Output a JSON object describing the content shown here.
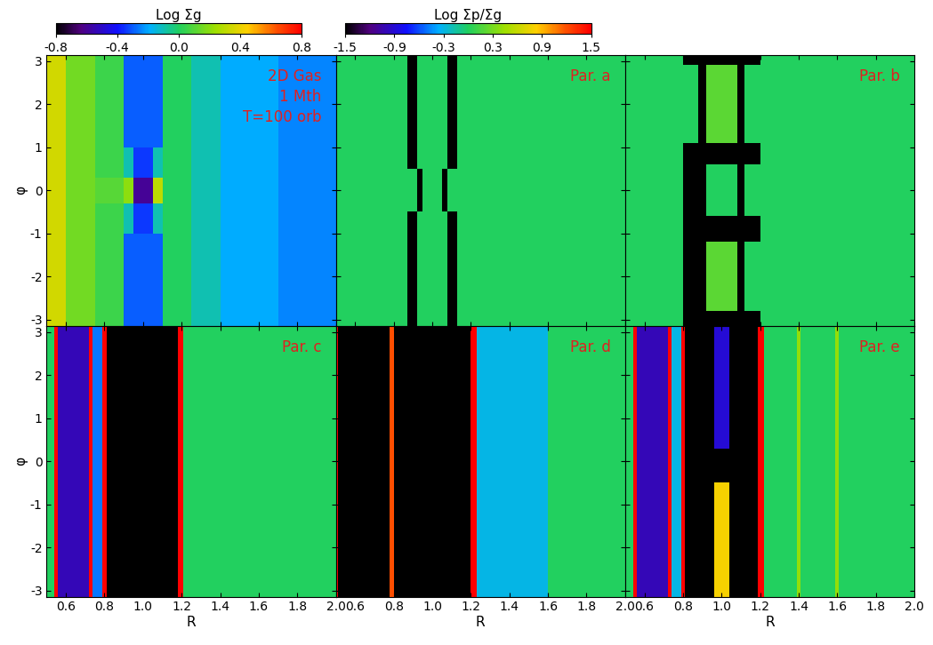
{
  "chart_data": [
    {
      "type": "heatmap",
      "annotations": [
        "2D Gas",
        "1 Mth",
        "T=100 orb"
      ],
      "ylabel": "φ",
      "tick_labels": "y",
      "xlim": [
        0.5,
        2.0
      ],
      "ylim": [
        -3.14159,
        3.14159
      ],
      "xticks": [
        0.6,
        0.8,
        {
          "value": 1.0,
          "label": "1.0"
        },
        1.2,
        1.4,
        1.6,
        1.8,
        {
          "value": 2.0,
          "label": "2.0"
        }
      ],
      "yticks": [
        -3,
        -2,
        -1,
        0,
        1,
        2,
        3
      ],
      "r_edges": [
        0.5,
        0.6,
        0.75,
        0.9,
        0.95,
        1.05,
        1.1,
        1.25,
        1.4,
        1.7,
        2.0
      ],
      "phi_edges": [
        -3.14159,
        -1.0,
        -0.3,
        0.3,
        1.0,
        3.14159
      ],
      "cells": [
        [
          0.35,
          0.15,
          0.05,
          -0.3,
          -0.3,
          -0.3,
          0.0,
          -0.1,
          -0.2,
          -0.25
        ],
        [
          0.35,
          0.15,
          0.05,
          -0.1,
          -0.35,
          -0.1,
          0.0,
          -0.1,
          -0.2,
          -0.25
        ],
        [
          0.35,
          0.15,
          0.1,
          0.2,
          -0.6,
          0.3,
          0.0,
          -0.1,
          -0.2,
          -0.25
        ],
        [
          0.35,
          0.15,
          0.05,
          -0.1,
          -0.35,
          -0.1,
          0.0,
          -0.1,
          -0.2,
          -0.25
        ],
        [
          0.35,
          0.15,
          0.05,
          -0.3,
          -0.3,
          -0.3,
          0.0,
          -0.1,
          -0.2,
          -0.25
        ]
      ],
      "color_range": [
        -0.8,
        0.8
      ],
      "colorbar": {
        "label": "Log Σg",
        "range": [
          -0.8,
          0.8
        ],
        "ticks": [
          -0.8,
          -0.4,
          {
            "value": 0,
            "label": "0.0"
          },
          0.4,
          0.8
        ]
      }
    },
    {
      "type": "heatmap",
      "annotations": [
        "Par. a"
      ],
      "tick_labels": false,
      "xlim": [
        0.5,
        2.0
      ],
      "ylim": [
        -3.14159,
        3.14159
      ],
      "xticks": [
        0.6,
        0.8,
        {
          "value": 1.0,
          "label": "1.0"
        },
        1.2,
        1.4,
        1.6,
        1.8,
        {
          "value": 2.0,
          "label": "2.0"
        }
      ],
      "yticks": [
        -3,
        -2,
        -1,
        0,
        1,
        2,
        3
      ],
      "r_edges": [
        0.5,
        0.87,
        0.92,
        0.95,
        1.05,
        1.08,
        1.13,
        2.0
      ],
      "phi_edges": [
        -3.14159,
        -0.5,
        0.5,
        3.14159
      ],
      "cells": [
        [
          0,
          -1.5,
          0,
          0,
          0,
          -1.5,
          0
        ],
        [
          0,
          0,
          -1.5,
          0,
          -1.5,
          0,
          0
        ],
        [
          0,
          -1.5,
          0,
          0,
          0,
          -1.5,
          0
        ]
      ],
      "color_range": [
        -1.5,
        1.5
      ],
      "colorbar": {
        "label": "Log Σp/Σg",
        "range": [
          -1.5,
          1.5
        ],
        "ticks": [
          -1.5,
          -0.9,
          -0.3,
          0.3,
          0.9,
          1.5
        ]
      }
    },
    {
      "type": "heatmap",
      "annotations": [
        "Par. b"
      ],
      "tick_labels": false,
      "xlim": [
        0.5,
        2.0
      ],
      "ylim": [
        -3.14159,
        3.14159
      ],
      "xticks": [
        0.6,
        0.8,
        {
          "value": 1.0,
          "label": "1.0"
        },
        1.2,
        1.4,
        1.6,
        1.8,
        {
          "value": 2.0,
          "label": "2.0"
        }
      ],
      "yticks": [
        -3,
        -2,
        -1,
        0,
        1,
        2,
        3
      ],
      "r_edges": [
        0.5,
        0.8,
        0.88,
        0.92,
        1.08,
        1.12,
        1.2,
        2.0
      ],
      "phi_edges": [
        -3.14159,
        -2.8,
        -1.2,
        -0.6,
        0.6,
        1.1,
        2.9,
        3.14159
      ],
      "cells": [
        [
          0,
          -1.5,
          -1.5,
          -1.5,
          -1.5,
          -1.5,
          0
        ],
        [
          0,
          -1.5,
          -1.5,
          0.2,
          -1.5,
          0,
          0
        ],
        [
          0,
          -1.5,
          -1.5,
          -1.5,
          -1.5,
          -1.5,
          0
        ],
        [
          0,
          -1.5,
          -1.5,
          0,
          -1.5,
          0,
          0
        ],
        [
          0,
          -1.5,
          -1.5,
          -1.5,
          -1.5,
          -1.5,
          0
        ],
        [
          0,
          0,
          -1.5,
          0.2,
          -1.5,
          0,
          0
        ],
        [
          0,
          -1.5,
          -1.5,
          -1.5,
          -1.5,
          -1.5,
          0
        ]
      ],
      "color_range": [
        -1.5,
        1.5
      ]
    },
    {
      "type": "heatmap",
      "annotations": [
        "Par. c"
      ],
      "xlabel": "R",
      "ylabel": "φ",
      "xlim": [
        0.5,
        2.0
      ],
      "ylim": [
        -3.14159,
        3.14159
      ],
      "xticks": [
        0.6,
        0.8,
        {
          "value": 1.0,
          "label": "1.0"
        },
        1.2,
        1.4,
        1.6,
        1.8,
        {
          "value": 2.0,
          "label": "2.0"
        }
      ],
      "yticks": [
        -3,
        -2,
        -1,
        0,
        1,
        2,
        3
      ],
      "r_edges": [
        0.5,
        0.54,
        0.56,
        0.72,
        0.74,
        0.79,
        0.81,
        1.18,
        1.21,
        2.0
      ],
      "phi_edges": [
        -3.14159,
        3.14159
      ],
      "cells": [
        [
          0,
          1.5,
          -1.0,
          1.5,
          -0.5,
          1.5,
          -1.5,
          1.5,
          0
        ]
      ],
      "color_range": [
        -1.5,
        1.5
      ]
    },
    {
      "type": "heatmap",
      "annotations": [
        "Par. d"
      ],
      "xlabel": "R",
      "tick_labels": "x",
      "xlim": [
        0.5,
        2.0
      ],
      "ylim": [
        -3.14159,
        3.14159
      ],
      "xticks": [
        0.6,
        0.8,
        {
          "value": 1.0,
          "label": "1.0"
        },
        1.2,
        1.4,
        1.6,
        1.8,
        {
          "value": 2.0,
          "label": "2.0"
        }
      ],
      "yticks": [
        -3,
        -2,
        -1,
        0,
        1,
        2,
        3
      ],
      "r_edges": [
        0.5,
        0.51,
        0.78,
        0.8,
        1.2,
        1.23,
        1.6,
        2.0
      ],
      "phi_edges": [
        -3.14159,
        3.14159
      ],
      "cells": [
        [
          1.5,
          -1.5,
          1.2,
          -1.5,
          1.5,
          -0.3,
          0
        ]
      ],
      "color_range": [
        -1.5,
        1.5
      ]
    },
    {
      "type": "heatmap",
      "annotations": [
        "Par. e"
      ],
      "xlabel": "R",
      "tick_labels": "x",
      "xlim": [
        0.5,
        2.0
      ],
      "ylim": [
        -3.14159,
        3.14159
      ],
      "xticks": [
        0.6,
        0.8,
        {
          "value": 1.0,
          "label": "1.0"
        },
        1.2,
        1.4,
        1.6,
        1.8,
        {
          "value": 2.0,
          "label": "2.0"
        }
      ],
      "yticks": [
        -3,
        -2,
        -1,
        0,
        1,
        2,
        3
      ],
      "r_edges": [
        0.5,
        0.54,
        0.56,
        0.72,
        0.74,
        0.79,
        0.81,
        0.96,
        1.04,
        1.19,
        1.22,
        1.39,
        1.41,
        1.59,
        1.61,
        2.0
      ],
      "phi_edges": [
        -3.14159,
        -0.5,
        0.3,
        3.14159
      ],
      "cells": [
        [
          0,
          1.5,
          -1.0,
          1.5,
          -0.3,
          1.5,
          -1.5,
          0.8,
          -1.5,
          1.5,
          0,
          0.4,
          0,
          0.4,
          0
        ],
        [
          0,
          1.5,
          -1.0,
          1.5,
          -0.3,
          1.5,
          -1.5,
          -1.5,
          -1.5,
          1.5,
          0,
          0.4,
          0,
          0.4,
          0
        ],
        [
          0,
          1.5,
          -1.0,
          1.5,
          -0.3,
          1.5,
          -1.5,
          -0.9,
          -1.5,
          1.5,
          0,
          0.4,
          0,
          0.4,
          0
        ]
      ],
      "color_range": [
        -1.5,
        1.5
      ]
    }
  ]
}
